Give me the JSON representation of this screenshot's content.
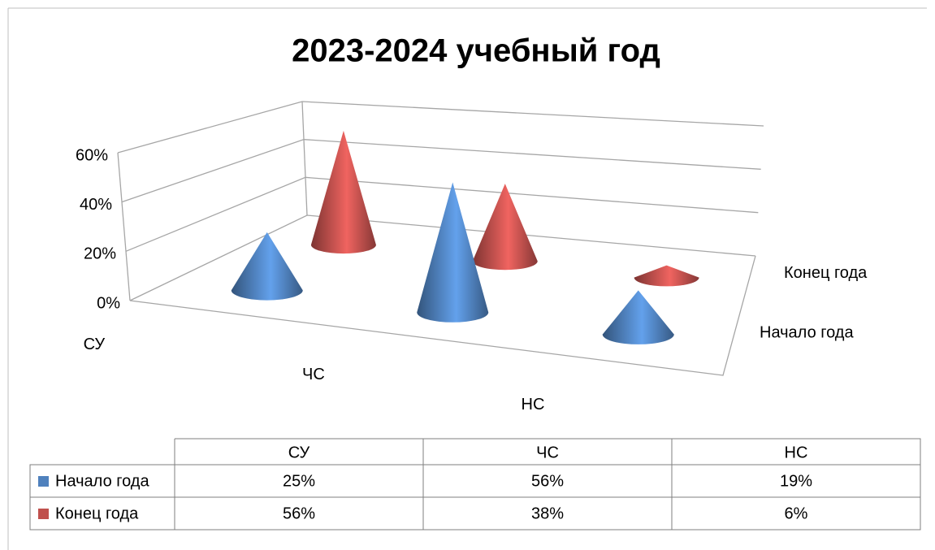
{
  "chart_data": {
    "type": "cone",
    "title": "2023-2024 учебный год",
    "categories": [
      "СУ",
      "ЧС",
      "НС"
    ],
    "series": [
      {
        "name": "Начало года",
        "color": "#4f81bd",
        "values": [
          25,
          56,
          19
        ],
        "value_labels": [
          "25%",
          "56%",
          "19%"
        ]
      },
      {
        "name": "Конец года",
        "color": "#c0504d",
        "values": [
          56,
          38,
          6
        ],
        "value_labels": [
          "56%",
          "38%",
          "6%"
        ]
      }
    ],
    "ylim": [
      0,
      60
    ],
    "yticks": [
      {
        "value": 0,
        "label": "0%"
      },
      {
        "value": 20,
        "label": "20%"
      },
      {
        "value": 40,
        "label": "40%"
      },
      {
        "value": 60,
        "label": "60%"
      }
    ],
    "grid": true
  }
}
